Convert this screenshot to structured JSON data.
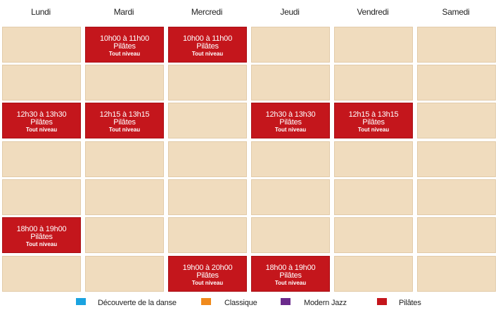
{
  "days": [
    "Lundi",
    "Mardi",
    "Mercredi",
    "Jeudi",
    "Vendredi",
    "Samedi"
  ],
  "rows": [
    [
      null,
      {
        "time": "10h00 à 11h00",
        "name": "Pilâtes",
        "level": "Tout niveau"
      },
      {
        "time": "10h00 à 11h00",
        "name": "Pilâtes",
        "level": "Tout niveau"
      },
      null,
      null,
      null
    ],
    [
      null,
      null,
      null,
      null,
      null,
      null
    ],
    [
      {
        "time": "12h30 à 13h30",
        "name": "Pilâtes",
        "level": "Tout niveau"
      },
      {
        "time": "12h15 à 13h15",
        "name": "Pilâtes",
        "level": "Tout niveau"
      },
      null,
      {
        "time": "12h30 à 13h30",
        "name": "Pilâtes",
        "level": "Tout niveau"
      },
      {
        "time": "12h15 à 13h15",
        "name": "Pilâtes",
        "level": "Tout niveau"
      },
      null
    ],
    [
      null,
      null,
      null,
      null,
      null,
      null
    ],
    [
      null,
      null,
      null,
      null,
      null,
      null
    ],
    [
      {
        "time": "18h00 à 19h00",
        "name": "Pilâtes",
        "level": "Tout niveau"
      },
      null,
      null,
      null,
      null,
      null
    ],
    [
      null,
      null,
      {
        "time": "19h00 à 20h00",
        "name": "Pilâtes",
        "level": "Tout niveau"
      },
      {
        "time": "18h00 à 19h00",
        "name": "Pilâtes",
        "level": "Tout niveau"
      },
      null,
      null
    ]
  ],
  "legend": [
    {
      "label": "Découverte de la danse",
      "color": "#1aa3e0"
    },
    {
      "label": "Classique",
      "color": "#f08a1c"
    },
    {
      "label": "Modern Jazz",
      "color": "#6b2a8c"
    },
    {
      "label": "Pilâtes",
      "color": "#c4161c"
    }
  ],
  "colors": {
    "empty_slot": "#f0dcbe",
    "class_slot": "#c4161c"
  }
}
